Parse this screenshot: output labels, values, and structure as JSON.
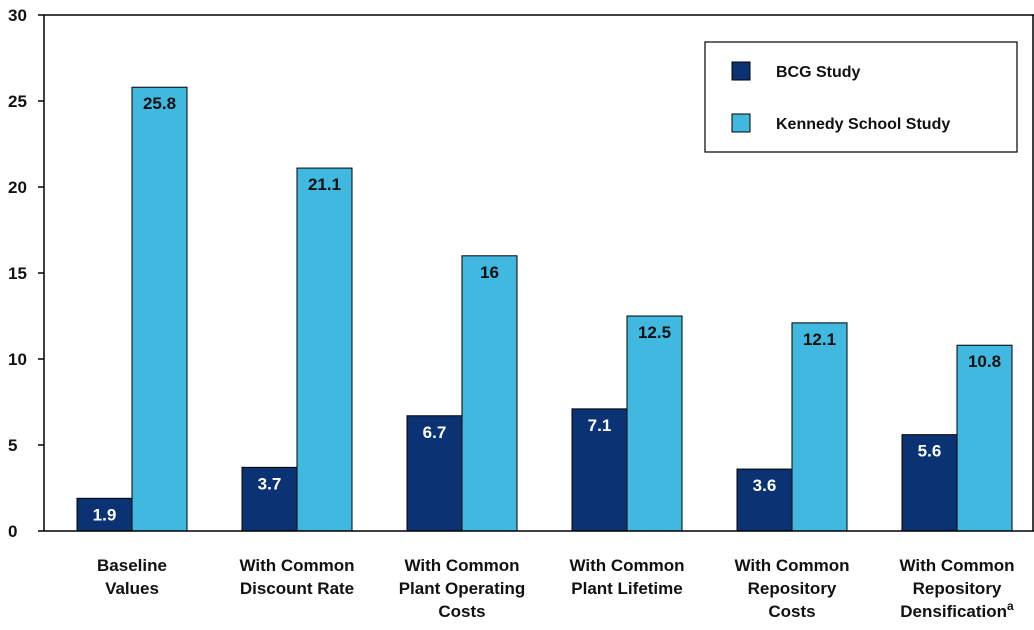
{
  "chart_data": {
    "type": "bar",
    "title": "",
    "xlabel": "",
    "ylabel": "",
    "ylim": [
      0,
      30
    ],
    "yticks": [
      0,
      5,
      10,
      15,
      20,
      25,
      30
    ],
    "grid": false,
    "legend_placement": "top-right",
    "categories": [
      [
        "Baseline",
        "Values"
      ],
      [
        "With Common",
        "Discount Rate"
      ],
      [
        "With Common",
        "Plant Operating",
        "Costs"
      ],
      [
        "With Common",
        "Plant Lifetime"
      ],
      [
        "With Common",
        "Repository",
        "Costs"
      ],
      [
        "With Common",
        "Repository",
        "Densification"
      ]
    ],
    "category_superscripts": [
      "",
      "",
      "",
      "",
      "",
      "a"
    ],
    "series": [
      {
        "name": "BCG Study",
        "color": "#0b3272",
        "label_color": "#ffffff",
        "values": [
          1.9,
          3.7,
          6.7,
          7.1,
          3.6,
          5.6
        ]
      },
      {
        "name": "Kennedy School Study",
        "color": "#40b8e0",
        "label_color": "#111111",
        "values": [
          25.8,
          21.1,
          16,
          12.5,
          12.1,
          10.8
        ]
      }
    ]
  }
}
